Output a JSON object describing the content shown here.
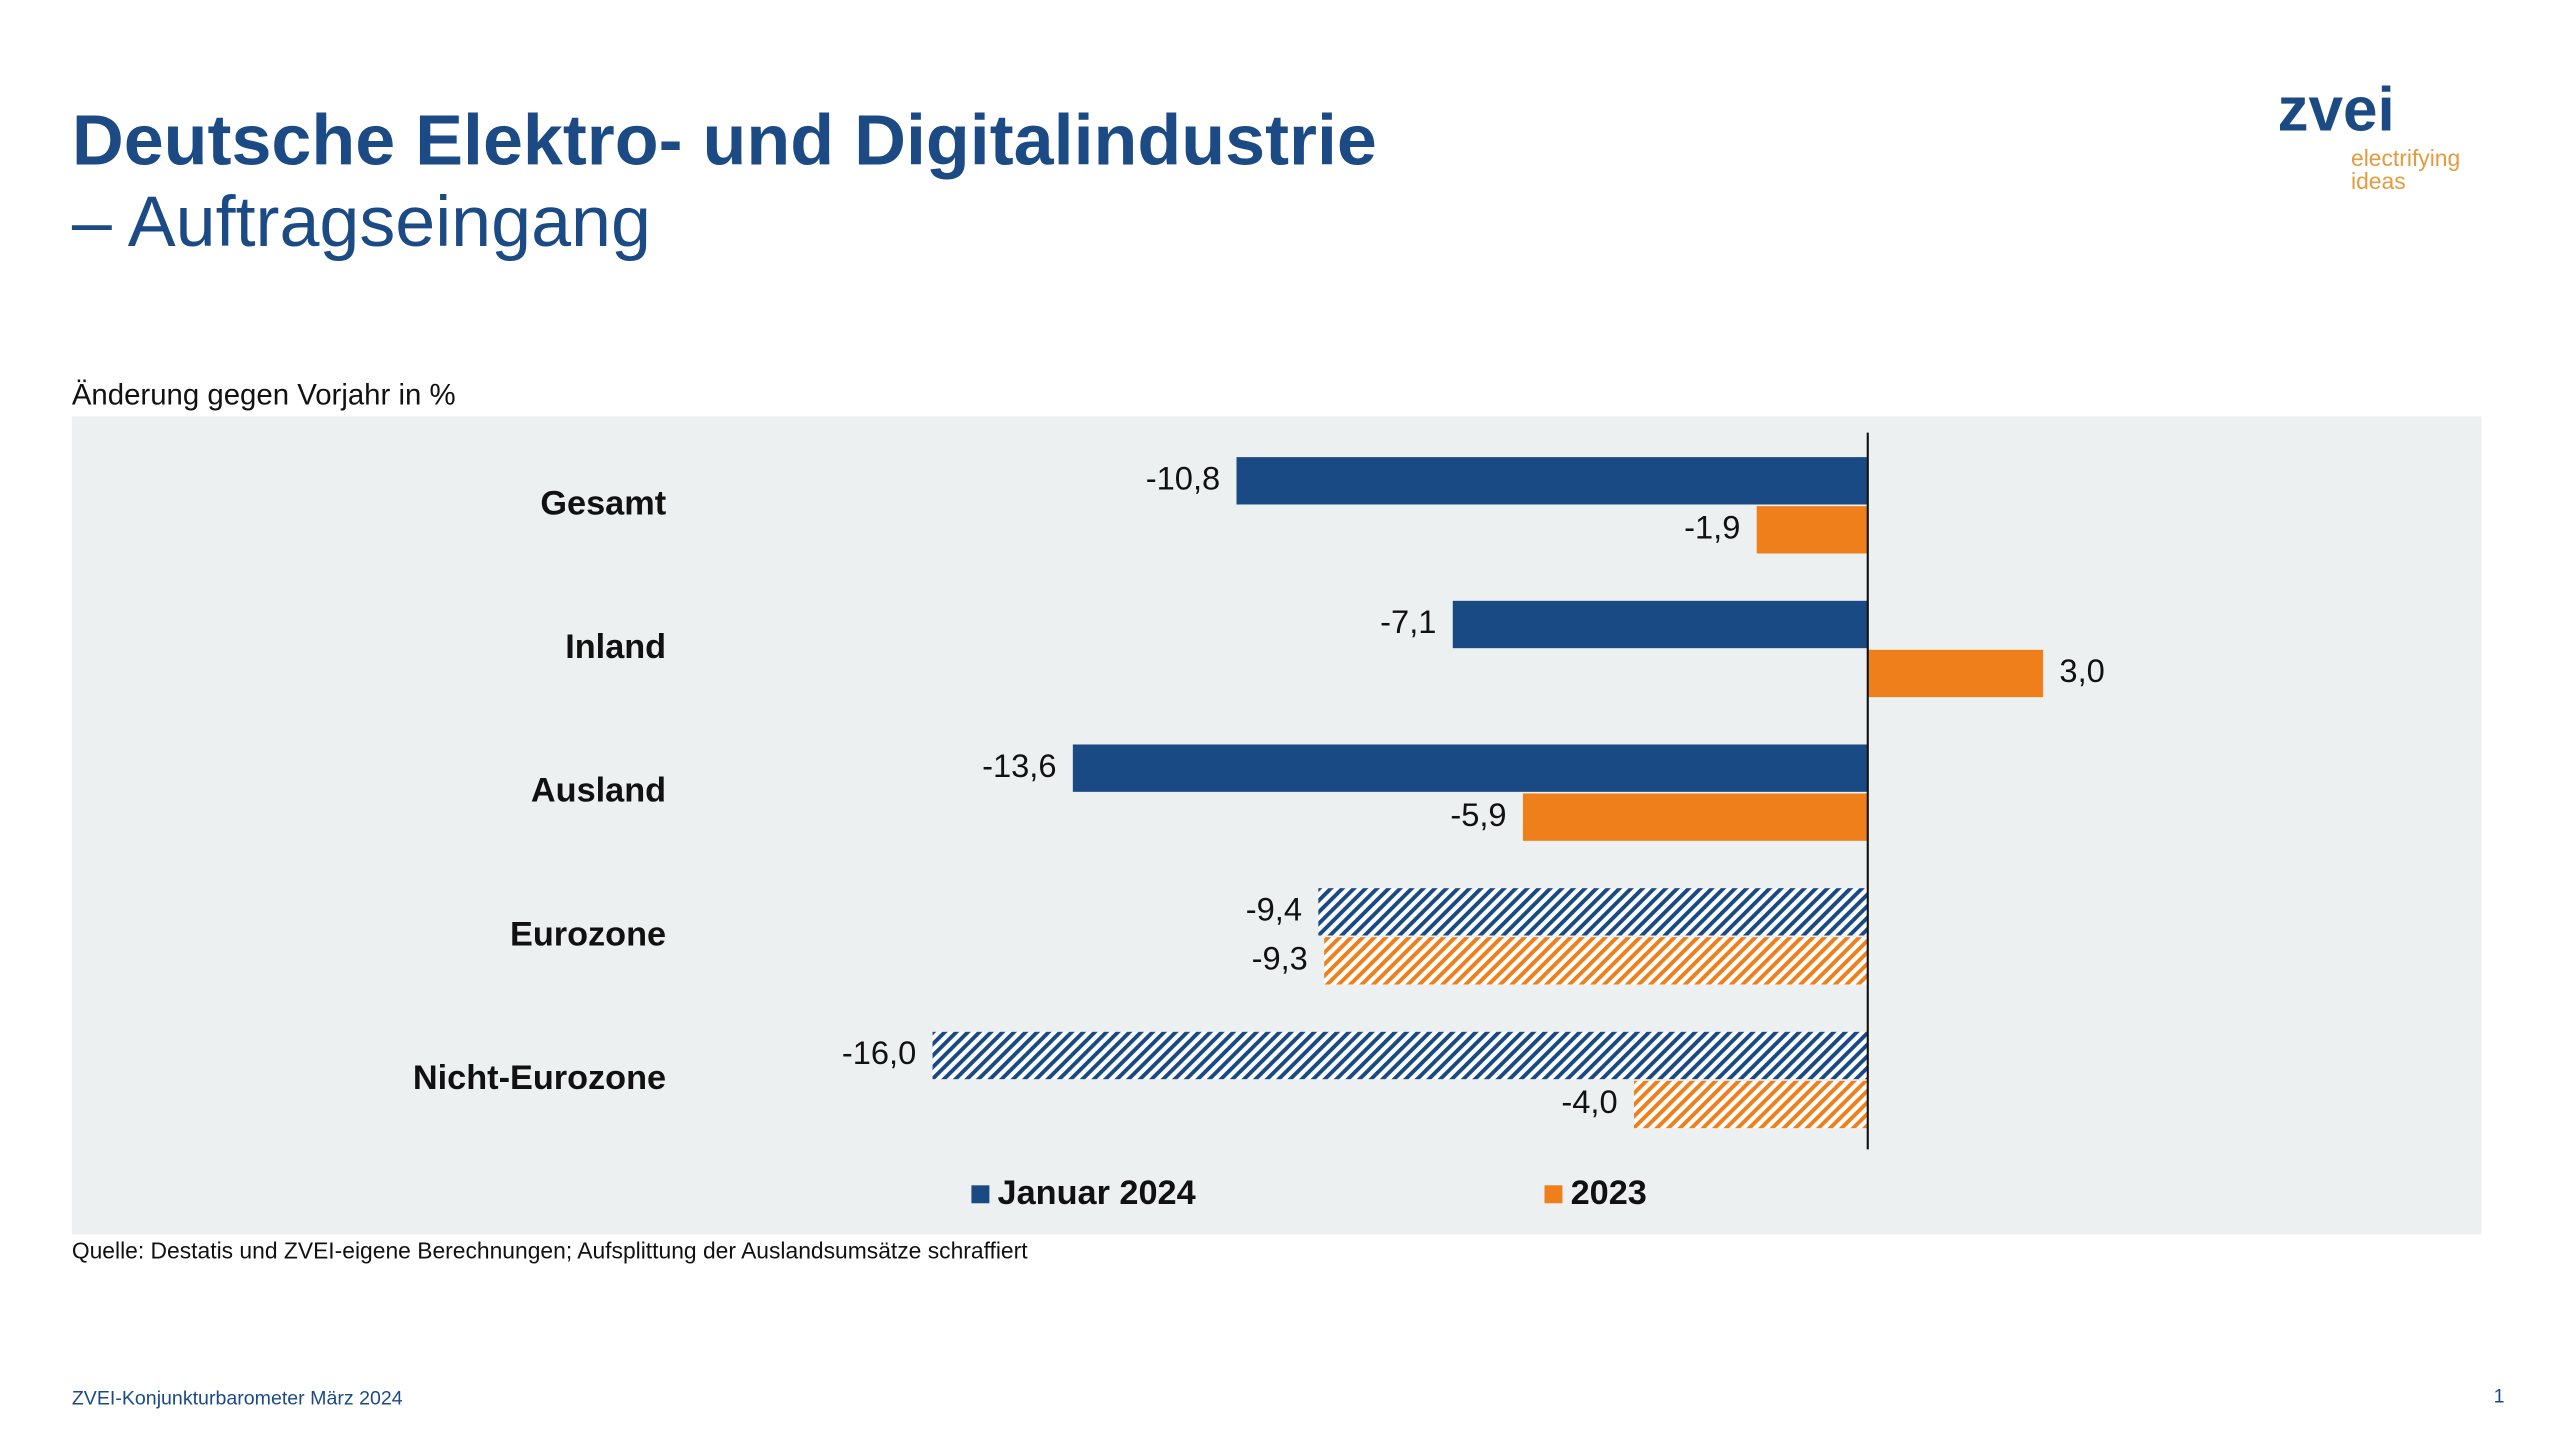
{
  "header": {
    "title": "Deutsche Elektro- und Digitalindustrie",
    "subtitle": "– Auftragseingang",
    "logo": "zvei",
    "tagline_1": "electrifying",
    "tagline_2": "ideas"
  },
  "chart_data": {
    "type": "hbar",
    "unit_label": "Änderung gegen Vorjahr in %",
    "categories": [
      "Gesamt",
      "Inland",
      "Ausland",
      "Eurozone",
      "Nicht-Eurozone"
    ],
    "hatched": [
      false,
      false,
      false,
      true,
      true
    ],
    "series": [
      {
        "name": "Januar 2024",
        "color": "#1a4a84",
        "values": [
          -10.8,
          -7.1,
          -13.6,
          -9.4,
          -16.0
        ],
        "value_labels": [
          "-10,8",
          "-7,1",
          "-13,6",
          "-9,4",
          "-16,0"
        ]
      },
      {
        "name": "2023",
        "color": "#ee7f1a",
        "values": [
          -1.9,
          3.0,
          -5.9,
          -9.3,
          -4.0
        ],
        "value_labels": [
          "-1,9",
          "3,0",
          "-5,9",
          "-9,3",
          "-4,0"
        ]
      }
    ],
    "legend": "bottom",
    "source": "Quelle: Destatis und ZVEI-eigene Berechnungen; Aufsplittung der Auslandsumsätze schraffiert"
  },
  "footer": {
    "text": "ZVEI-Konjunkturbarometer März 2024",
    "page_number": 1
  }
}
